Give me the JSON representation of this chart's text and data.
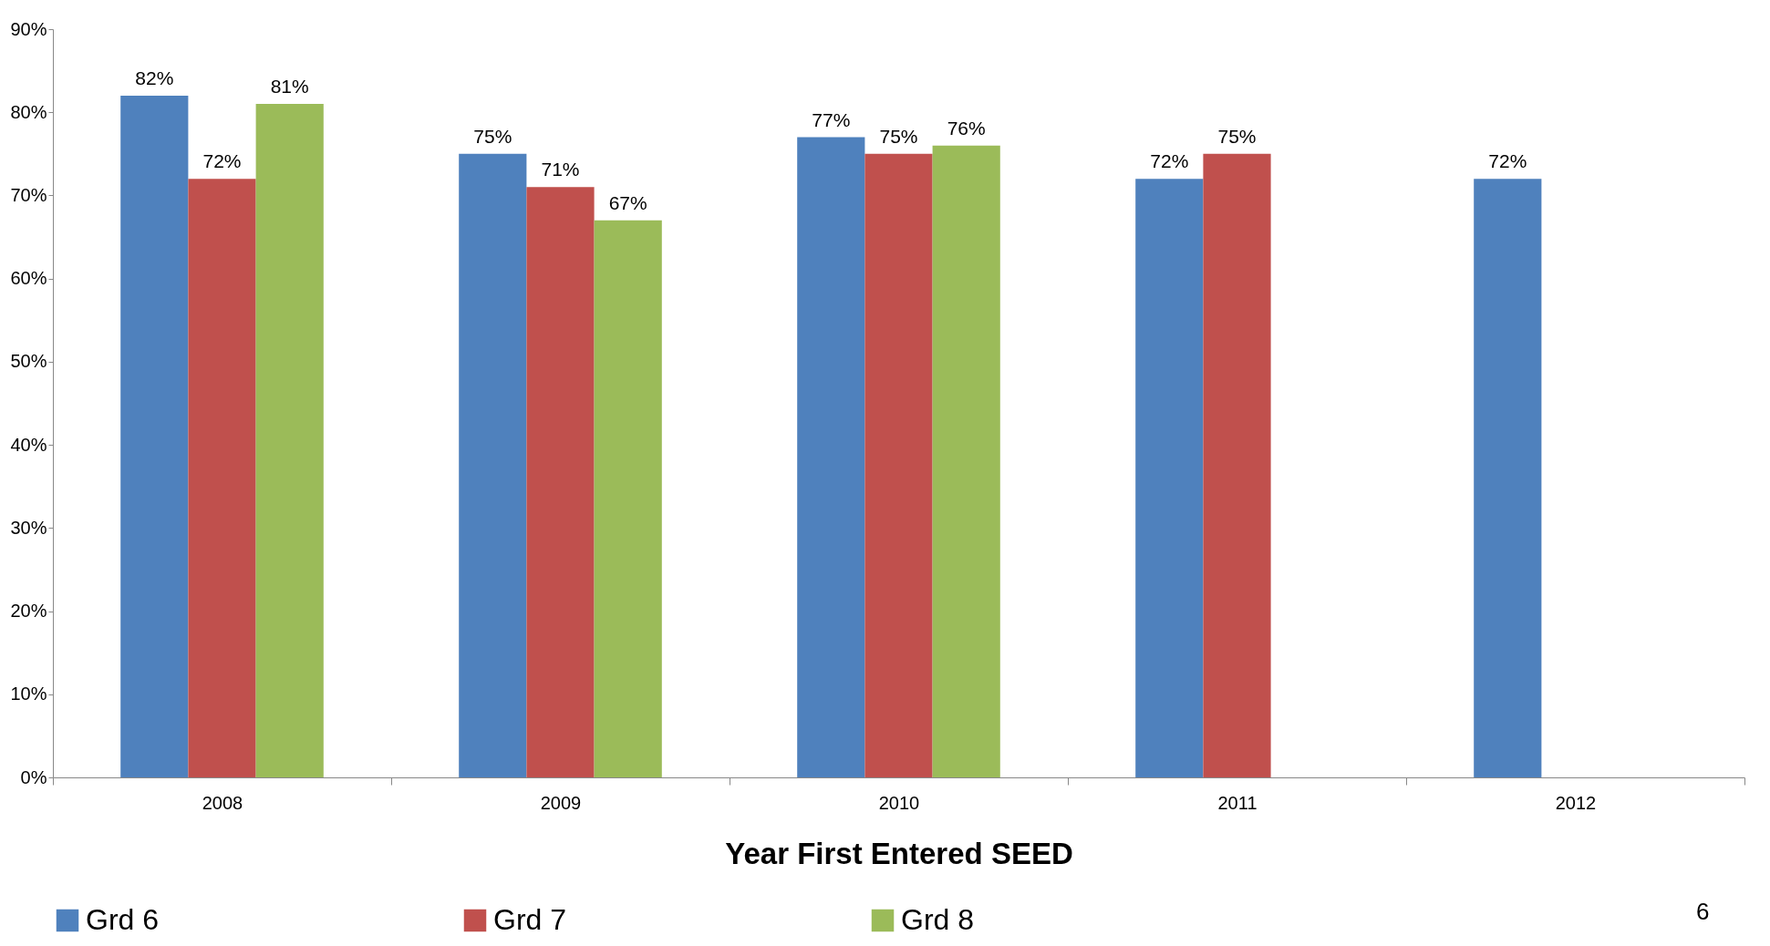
{
  "chart_data": {
    "type": "bar",
    "xlabel": "Year First Entered SEED",
    "categories": [
      "2008",
      "2009",
      "2010",
      "2011",
      "2012"
    ],
    "series": [
      {
        "name": "Grd 6",
        "color": "#4f81bd",
        "values": [
          82,
          75,
          77,
          72,
          72
        ],
        "value_labels": [
          "82%",
          "75%",
          "77%",
          "72%",
          "72%"
        ]
      },
      {
        "name": "Grd 7",
        "color": "#c0504d",
        "values": [
          72,
          71,
          75,
          75,
          null
        ],
        "value_labels": [
          "72%",
          "71%",
          "75%",
          "75%",
          null
        ]
      },
      {
        "name": "Grd 8",
        "color": "#9bbb59",
        "values": [
          81,
          67,
          76,
          null,
          null
        ],
        "value_labels": [
          "81%",
          "67%",
          "76%",
          null,
          null
        ]
      }
    ],
    "ylim": [
      0,
      90
    ],
    "yticks": [
      {
        "value": 0,
        "label": "0%"
      },
      {
        "value": 10,
        "label": "10%"
      },
      {
        "value": 20,
        "label": "20%"
      },
      {
        "value": 30,
        "label": "30%"
      },
      {
        "value": 40,
        "label": "40%"
      },
      {
        "value": 50,
        "label": "50%"
      },
      {
        "value": 60,
        "label": "60%"
      },
      {
        "value": 70,
        "label": "70%"
      },
      {
        "value": 80,
        "label": "80%"
      },
      {
        "value": 90,
        "label": "90%"
      }
    ],
    "grid": false,
    "legend": "bottom",
    "annotations": [
      "6"
    ]
  }
}
